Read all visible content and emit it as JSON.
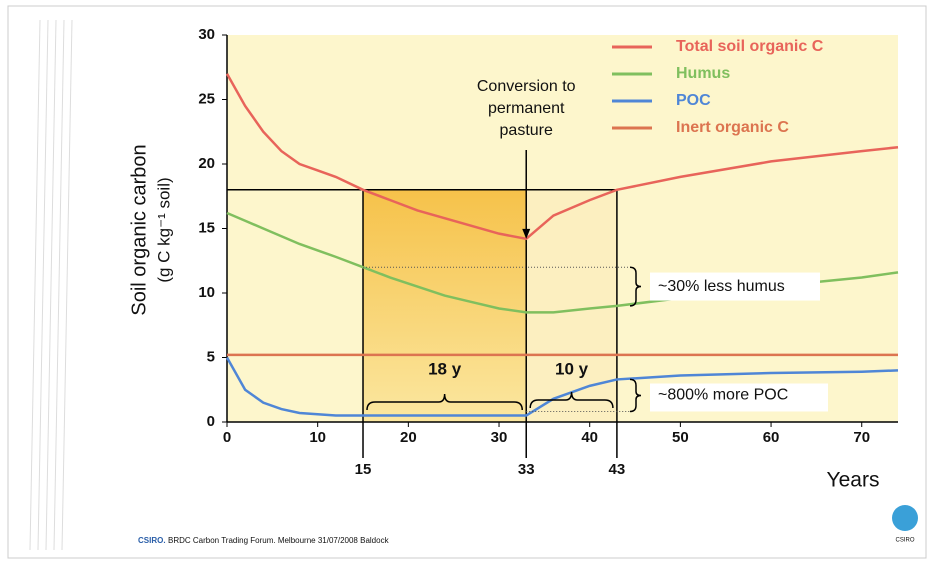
{
  "chart_data": {
    "type": "line",
    "y_label": [
      "Soil organic carbon",
      "(g C kg⁻¹ soil)"
    ],
    "x_label": "Years",
    "x": [
      0,
      2,
      4,
      6,
      8,
      10,
      12,
      15,
      18,
      21,
      24,
      27,
      30,
      33,
      36,
      40,
      43,
      50,
      60,
      70,
      74
    ],
    "series": [
      {
        "name": "Total soil organic C",
        "color": "#e8645a",
        "values": [
          27,
          24.5,
          22.5,
          21,
          20,
          19.5,
          19,
          18,
          17.2,
          16.4,
          15.8,
          15.2,
          14.6,
          14.2,
          16,
          17.2,
          18,
          19,
          20.2,
          21,
          21.3
        ]
      },
      {
        "name": "Humus",
        "color": "#80bf5e",
        "values": [
          16.2,
          15.6,
          15,
          14.4,
          13.8,
          13.3,
          12.8,
          12,
          11.2,
          10.5,
          9.8,
          9.3,
          8.8,
          8.5,
          8.5,
          8.8,
          9,
          9.6,
          10.5,
          11.2,
          11.6
        ]
      },
      {
        "name": "POC",
        "color": "#4f86d6",
        "values": [
          5,
          2.5,
          1.5,
          1,
          0.7,
          0.6,
          0.5,
          0.5,
          0.5,
          0.5,
          0.5,
          0.5,
          0.5,
          0.5,
          1.8,
          2.8,
          3.3,
          3.6,
          3.8,
          3.9,
          4
        ]
      },
      {
        "name": "Inert organic C",
        "color": "#dc7450",
        "values": [
          5.2,
          5.2,
          5.2,
          5.2,
          5.2,
          5.2,
          5.2,
          5.2,
          5.2,
          5.2,
          5.2,
          5.2,
          5.2,
          5.2,
          5.2,
          5.2,
          5.2,
          5.2,
          5.2,
          5.2,
          5.2
        ]
      }
    ],
    "xlim": [
      0,
      74
    ],
    "ylim": [
      0,
      30
    ],
    "xticks": [
      0,
      10,
      20,
      30,
      40,
      50,
      60,
      70
    ],
    "yticks": [
      0,
      5,
      10,
      15,
      20,
      25,
      30
    ],
    "period_marks": [
      15,
      33,
      43
    ],
    "period_labels": [
      "18 y",
      "10 y"
    ],
    "conversion_label": [
      "Conversion to",
      "permanent",
      "pasture"
    ],
    "humus_note": "~30% less humus",
    "poc_note": "~800% more POC",
    "legend": "top-right"
  },
  "footer": {
    "brand": "CSIRO.",
    "text": "BRDC Carbon Trading Forum. Melbourne 31/07/2008 Baldock",
    "logo": "CSIRO"
  }
}
